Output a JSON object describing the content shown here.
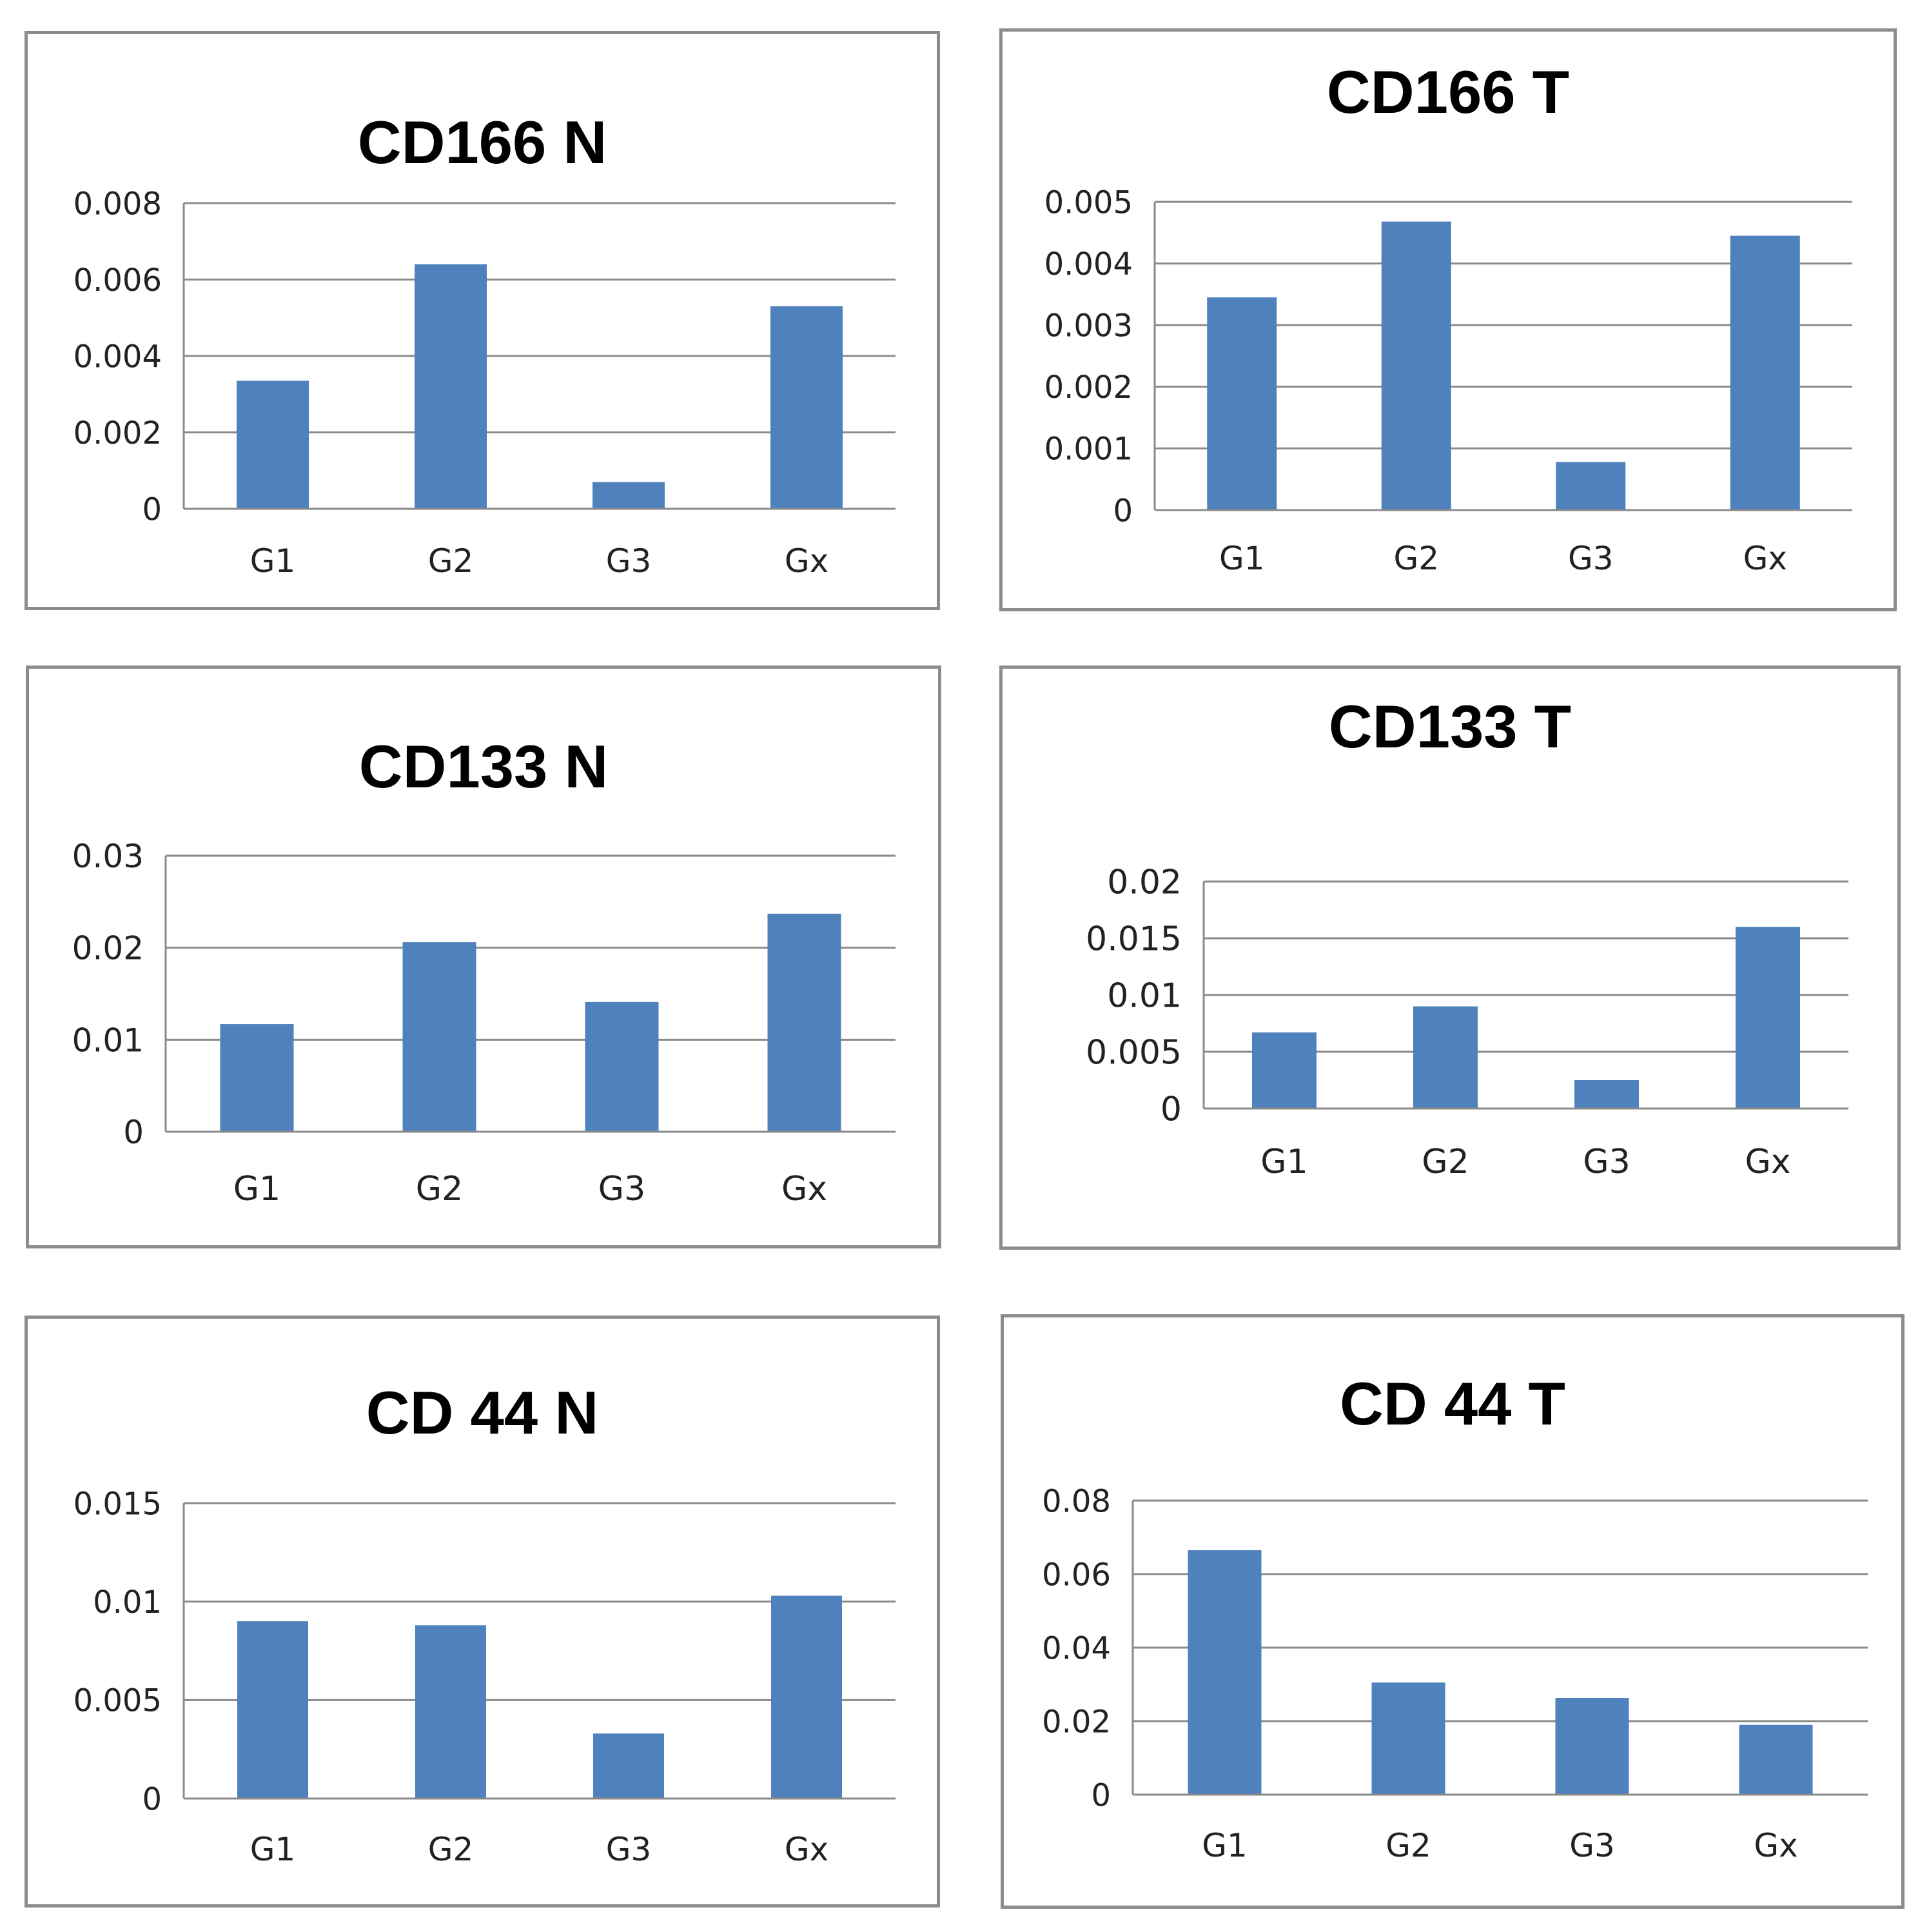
{
  "colors": {
    "bar": "#4f81bd",
    "grid": "#8a8a8a",
    "axis": "#8a8a8a"
  },
  "chart_data": [
    {
      "type": "bar",
      "title": "CD166 N",
      "categories": [
        "G1",
        "G2",
        "G3",
        "Gx"
      ],
      "values": [
        0.00335,
        0.0064,
        0.0007,
        0.0053
      ],
      "ylim": [
        0,
        0.008
      ],
      "yticks": [
        "0",
        "0.002",
        "0.004",
        "0.006",
        "0.008"
      ],
      "xlabel": "",
      "ylabel": ""
    },
    {
      "type": "bar",
      "title": "CD166 T",
      "categories": [
        "G1",
        "G2",
        "G3",
        "Gx"
      ],
      "values": [
        0.00345,
        0.00468,
        0.00078,
        0.00445
      ],
      "ylim": [
        0,
        0.005
      ],
      "yticks": [
        "0",
        "0.001",
        "0.002",
        "0.003",
        "0.004",
        "0.005"
      ],
      "xlabel": "",
      "ylabel": ""
    },
    {
      "type": "bar",
      "title": "CD133 N",
      "categories": [
        "G1",
        "G2",
        "G3",
        "Gx"
      ],
      "values": [
        0.0117,
        0.0206,
        0.0141,
        0.0237
      ],
      "ylim": [
        0,
        0.03
      ],
      "yticks": [
        "0",
        "0.01",
        "0.02",
        "0.03"
      ],
      "xlabel": "",
      "ylabel": ""
    },
    {
      "type": "bar",
      "title": "CD133 T",
      "categories": [
        "G1",
        "G2",
        "G3",
        "Gx"
      ],
      "values": [
        0.0067,
        0.009,
        0.0025,
        0.016
      ],
      "ylim": [
        0,
        0.02
      ],
      "yticks": [
        "0",
        "0.005",
        "0.01",
        "0.015",
        "0.02"
      ],
      "xlabel": "",
      "ylabel": ""
    },
    {
      "type": "bar",
      "title": "CD 44 N",
      "categories": [
        "G1",
        "G2",
        "G3",
        "Gx"
      ],
      "values": [
        0.009,
        0.0088,
        0.0033,
        0.0103
      ],
      "ylim": [
        0,
        0.015
      ],
      "yticks": [
        "0",
        "0.005",
        "0.01",
        "0.015"
      ],
      "xlabel": "",
      "ylabel": ""
    },
    {
      "type": "bar",
      "title": "CD 44 T",
      "categories": [
        "G1",
        "G2",
        "G3",
        "Gx"
      ],
      "values": [
        0.0665,
        0.0305,
        0.0263,
        0.019
      ],
      "ylim": [
        0,
        0.08
      ],
      "yticks": [
        "0",
        "0.02",
        "0.04",
        "0.06",
        "0.08"
      ],
      "xlabel": "",
      "ylabel": ""
    }
  ]
}
